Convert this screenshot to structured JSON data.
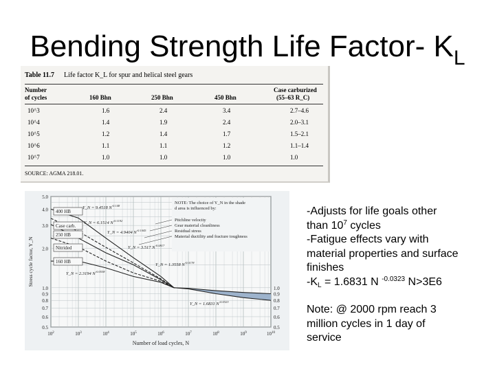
{
  "slide": {
    "title_main": "Bending Strength Life Factor- K",
    "title_sub": "L"
  },
  "table": {
    "number": "Table 11.7",
    "caption": "Life factor K_L for spur and helical steel gears",
    "headers": [
      "Number",
      "of cycles",
      "160 Bhn",
      "250 Bhn",
      "450 Bhn",
      "Case carburized",
      "(55–63 R_C)"
    ],
    "rows": [
      {
        "cycles": "10^3",
        "c160": "1.6",
        "c250": "2.4",
        "c450": "3.4",
        "carb": "2.7–4.6"
      },
      {
        "cycles": "10^4",
        "c160": "1.4",
        "c250": "1.9",
        "c450": "2.4",
        "carb": "2.0–3.1"
      },
      {
        "cycles": "10^5",
        "c160": "1.2",
        "c250": "1.4",
        "c450": "1.7",
        "carb": "1.5–2.1"
      },
      {
        "cycles": "10^6",
        "c160": "1.1",
        "c250": "1.1",
        "c450": "1.2",
        "carb": "1.1–1.4"
      },
      {
        "cycles": "10^7",
        "c160": "1.0",
        "c250": "1.0",
        "c450": "1.0",
        "carb": "1.0"
      }
    ],
    "source": "SOURCE: AGMA 218.01."
  },
  "chart_data": {
    "type": "line",
    "xlabel": "Number of load cycles, N",
    "ylabel": "Stress cycle factor, Y_N",
    "x_scale": "log",
    "xlim": [
      100,
      10000000000
    ],
    "ylim": [
      0.5,
      5.0
    ],
    "x_ticks": [
      "10^2",
      "10^3",
      "10^4",
      "10^5",
      "10^6",
      "10^7",
      "10^8",
      "10^9",
      "10^10"
    ],
    "y_ticks_left": [
      "5.0",
      "4.0",
      "3.0",
      "2.0",
      "1.0",
      "0.9",
      "0.8",
      "0.7",
      "0.6",
      "0.5"
    ],
    "y_ticks_right": [
      "1.0",
      "0.9",
      "0.8",
      "0.7",
      "0.6",
      "0.5"
    ],
    "grid": true,
    "note": "NOTE: The choice of Y_N in the shaded area is influenced by:",
    "note_items": [
      "Pitchline velocity",
      "Gear material cleanliness",
      "Residual stress",
      "Material ductility and fracture toughness"
    ],
    "curve_labels": [
      "400 HB",
      "Case carb.",
      "250 HB",
      "Nitrided",
      "160 HB"
    ],
    "equations": [
      "Y_N = 9.4518 N^-0.148",
      "Y_N = 6.1514 N^-0.1192",
      "Y_N = 4.9404 N^-0.1045",
      "Y_N = 3.517 N^-0.0817",
      "Y_N = 2.3194 N^-0.0538",
      "Y_N = 1.3558 N^-0.0178",
      "Y_N = 1.6831 N^-0.0323"
    ],
    "series": [
      {
        "name": "400 HB",
        "points": [
          [
            100,
            4.0
          ],
          [
            1000,
            3.42
          ],
          [
            10000,
            2.4
          ],
          [
            100000,
            1.7
          ],
          [
            1000000,
            1.22
          ],
          [
            3000000,
            1.0
          ]
        ]
      },
      {
        "name": "Case carb.",
        "points": [
          [
            100,
            3.4
          ],
          [
            1000,
            2.7
          ],
          [
            10000,
            2.04
          ],
          [
            100000,
            1.55
          ],
          [
            1000000,
            1.17
          ],
          [
            3000000,
            1.0
          ]
        ]
      },
      {
        "name": "250 HB",
        "points": [
          [
            100,
            3.05
          ],
          [
            1000,
            2.4
          ],
          [
            10000,
            1.85
          ],
          [
            100000,
            1.5
          ],
          [
            1000000,
            1.15
          ],
          [
            3000000,
            1.0
          ]
        ]
      },
      {
        "name": "Nitrided",
        "points": [
          [
            100,
            2.4
          ],
          [
            1000,
            2.05
          ],
          [
            10000,
            1.6
          ],
          [
            100000,
            1.3
          ],
          [
            1000000,
            1.12
          ],
          [
            3000000,
            1.0
          ]
        ]
      },
      {
        "name": "160 HB",
        "points": [
          [
            100,
            1.6
          ],
          [
            1000,
            1.6
          ],
          [
            10000,
            1.42
          ],
          [
            100000,
            1.22
          ],
          [
            1000000,
            1.1
          ],
          [
            3000000,
            1.0
          ]
        ]
      },
      {
        "name": "Upper bound",
        "points": [
          [
            3000000,
            1.0
          ],
          [
            10000000,
            0.99
          ],
          [
            100000000,
            0.95
          ],
          [
            1000000000,
            0.92
          ],
          [
            10000000000,
            0.9
          ]
        ]
      },
      {
        "name": "Lower bound",
        "points": [
          [
            3000000,
            1.0
          ],
          [
            10000000,
            0.98
          ],
          [
            100000000,
            0.9
          ],
          [
            1000000000,
            0.84
          ],
          [
            10000000000,
            0.8
          ]
        ]
      }
    ]
  },
  "notes": {
    "line1": "-Adjusts for life goals other",
    "line2_a": "than  10",
    "line2_sup": "7",
    "line2_b": " cycles",
    "line3": "-Fatigue effects vary with",
    "line4": "material properties and surface",
    "line5": "finishes",
    "line6_a": "-K",
    "line6_sub": "L",
    "line6_b": " = 1.6831 N ",
    "line6_sup": "-0.0323",
    "line6_c": " N>3E6",
    "line7": "Note: @ 2000 rpm reach 3",
    "line8": "million cycles in 1 day of",
    "line9": "service"
  }
}
